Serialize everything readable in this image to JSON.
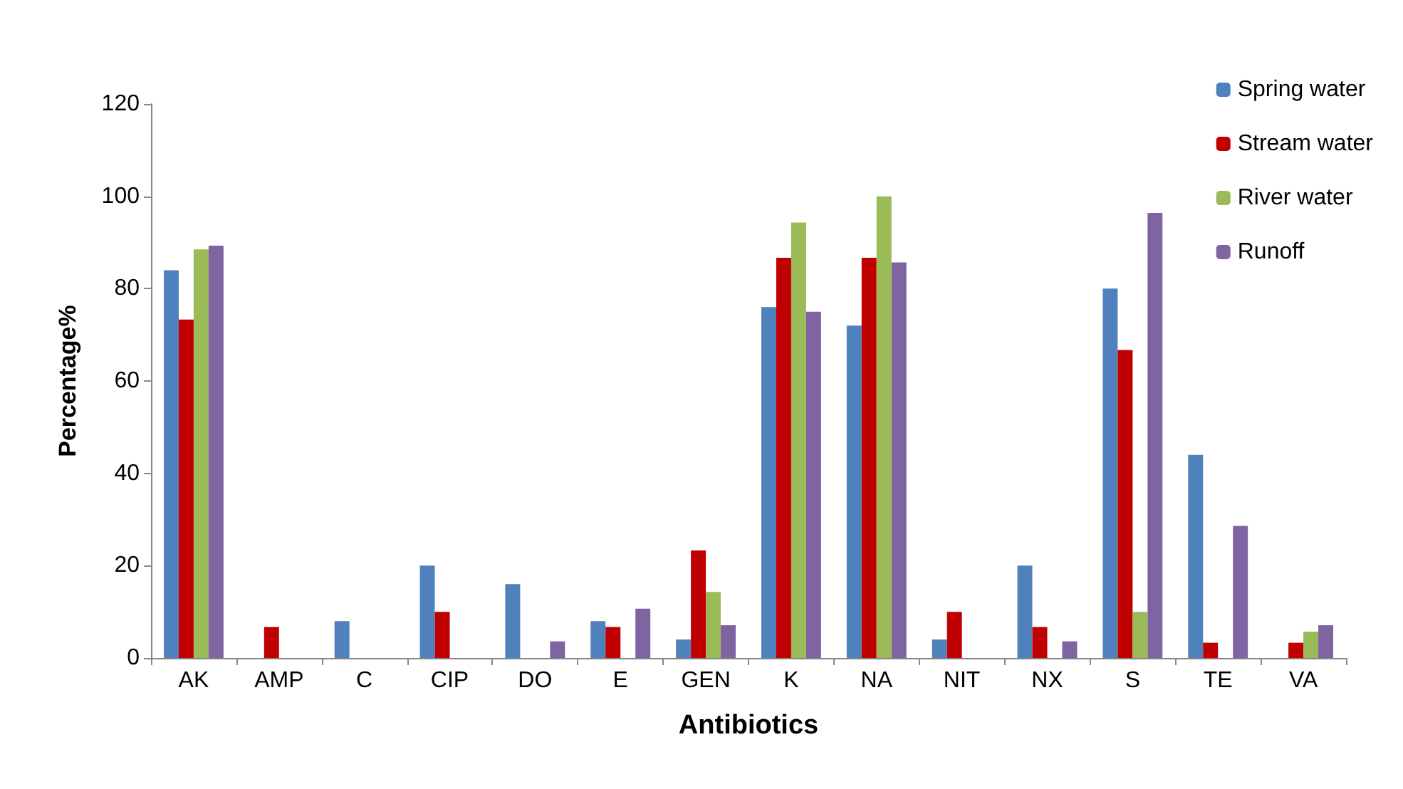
{
  "chart_data": {
    "type": "bar",
    "xlabel": "Antibiotics",
    "ylabel": "Percentage%",
    "categories": [
      "AK",
      "AMP",
      "C",
      "CIP",
      "DO",
      "E",
      "GEN",
      "K",
      "NA",
      "NIT",
      "NX",
      "S",
      "TE",
      "VA"
    ],
    "series": [
      {
        "name": "Spring water",
        "color": "#4f81bd",
        "values": [
          84,
          0,
          8,
          20,
          16,
          8,
          4,
          76,
          72,
          4,
          20,
          80,
          44,
          0
        ]
      },
      {
        "name": "Stream water",
        "color": "#c00000",
        "values": [
          73.3,
          6.7,
          0,
          10,
          0,
          6.7,
          23.3,
          86.7,
          86.7,
          10,
          6.7,
          66.7,
          3.3,
          3.3
        ]
      },
      {
        "name": "River water",
        "color": "#9bbb59",
        "values": [
          88.5,
          0,
          0,
          0,
          0,
          0,
          14.3,
          94.3,
          100,
          0,
          0,
          10,
          0,
          5.7
        ]
      },
      {
        "name": "Runoff",
        "color": "#8064a2",
        "values": [
          89.3,
          0,
          0,
          0,
          3.6,
          10.7,
          7.1,
          75,
          85.7,
          0,
          3.6,
          96.4,
          28.6,
          7.1
        ]
      }
    ],
    "ylim": [
      0,
      120
    ],
    "yticks": [
      0,
      20,
      40,
      60,
      80,
      100,
      120
    ],
    "grid": false,
    "legend": "top right"
  }
}
